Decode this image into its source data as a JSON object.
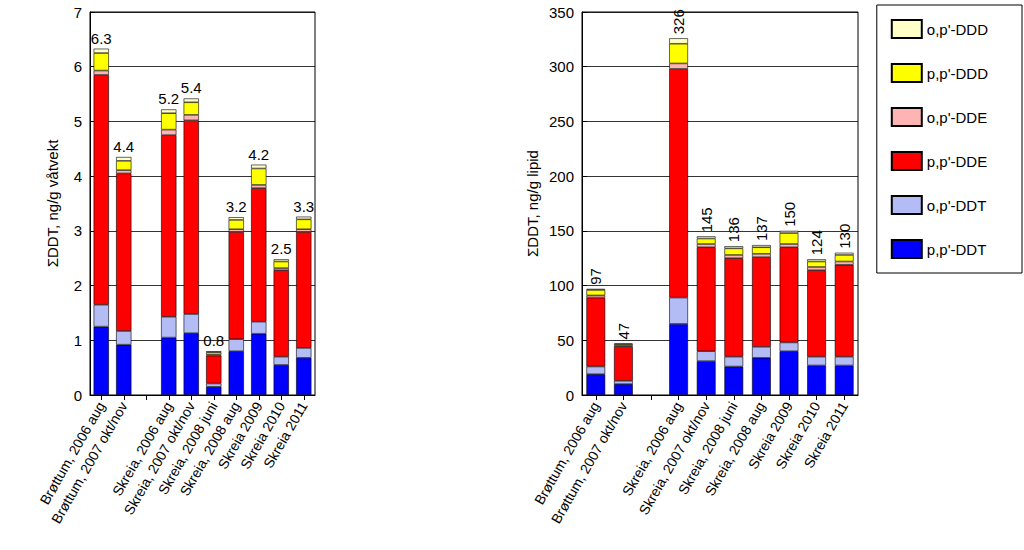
{
  "chart_data": [
    {
      "type": "bar",
      "stacked": true,
      "grid": true,
      "ylabel": "ΣDDT, ng/g våtvekt",
      "ylim": [
        0,
        7
      ],
      "yticks": [
        0,
        1,
        2,
        3,
        4,
        5,
        6,
        7
      ],
      "categories": [
        "Brøttum, 2006 aug",
        "Brøttum, 2007 okt/nov",
        null,
        "Skreia, 2006 aug",
        "Skreia, 2007 okt/nov",
        "Skreia, 2008 juni",
        "Skreia, 2008 aug",
        "Skreia 2009",
        "Skreia 2010",
        "Skreia 2011"
      ],
      "totals": [
        6.3,
        4.4,
        null,
        5.2,
        5.4,
        0.8,
        3.2,
        4.2,
        2.5,
        3.3
      ],
      "series": [
        {
          "name": "p,p'-DDT",
          "color": "#0000ff",
          "values": [
            1.25,
            0.92,
            null,
            1.05,
            1.13,
            0.15,
            0.8,
            1.12,
            0.55,
            0.68
          ]
        },
        {
          "name": "o,p'-DDT",
          "color": "#b4bcf5",
          "values": [
            0.4,
            0.25,
            null,
            0.38,
            0.35,
            0.06,
            0.22,
            0.22,
            0.15,
            0.18
          ]
        },
        {
          "name": "p,p'-DDE",
          "color": "#ff0000",
          "values": [
            4.2,
            2.88,
            null,
            3.32,
            3.54,
            0.51,
            1.96,
            2.44,
            1.58,
            2.12
          ]
        },
        {
          "name": "o,p'-DDE",
          "color": "#ffb4b4",
          "values": [
            0.08,
            0.06,
            null,
            0.1,
            0.1,
            0.02,
            0.05,
            0.06,
            0.04,
            0.05
          ]
        },
        {
          "name": "p,p'-DDD",
          "color": "#ffff00",
          "values": [
            0.32,
            0.17,
            null,
            0.3,
            0.23,
            0.04,
            0.17,
            0.3,
            0.12,
            0.18
          ]
        },
        {
          "name": "o,p'-DDD",
          "color": "#ffffc8",
          "values": [
            0.08,
            0.07,
            null,
            0.07,
            0.07,
            0.02,
            0.05,
            0.07,
            0.04,
            0.05
          ]
        }
      ]
    },
    {
      "type": "bar",
      "stacked": true,
      "grid": true,
      "legend": "top-right",
      "ylabel": "ΣDDT, ng/g lipid",
      "ylim": [
        0,
        350
      ],
      "yticks": [
        0,
        50,
        100,
        150,
        200,
        250,
        300,
        350
      ],
      "categories": [
        "Brøttum, 2006 aug",
        "Brøttum, 2007 okt/nov",
        null,
        "Skreia, 2006 aug",
        "Skreia, 2007 okt/nov",
        "Skreia, 2008 juni",
        "Skreia, 2008 aug",
        "Skreia 2009",
        "Skreia 2010",
        "Skreia 2011"
      ],
      "totals": [
        97,
        47,
        null,
        326,
        145,
        136,
        137,
        150,
        124,
        130
      ],
      "series": [
        {
          "name": "p,p'-DDT",
          "color": "#0000ff",
          "values": [
            19,
            10,
            null,
            65,
            31,
            26,
            34,
            40,
            27,
            27
          ]
        },
        {
          "name": "o,p'-DDT",
          "color": "#b4bcf5",
          "values": [
            7,
            3,
            null,
            24,
            9,
            9,
            10,
            8,
            8,
            8
          ]
        },
        {
          "name": "p,p'-DDE",
          "color": "#ff0000",
          "values": [
            63,
            31,
            null,
            209,
            95,
            90,
            82,
            87,
            79,
            84
          ]
        },
        {
          "name": "o,p'-DDE",
          "color": "#ffb4b4",
          "values": [
            2,
            1,
            null,
            5,
            3,
            3,
            3,
            3,
            3,
            3
          ]
        },
        {
          "name": "p,p'-DDD",
          "color": "#ffff00",
          "values": [
            5,
            1.5,
            null,
            18,
            5,
            6,
            6,
            10,
            5,
            6
          ]
        },
        {
          "name": "o,p'-DDD",
          "color": "#ffffc8",
          "values": [
            1,
            0.5,
            null,
            5,
            2,
            2,
            2,
            2,
            2,
            2
          ]
        }
      ]
    }
  ]
}
